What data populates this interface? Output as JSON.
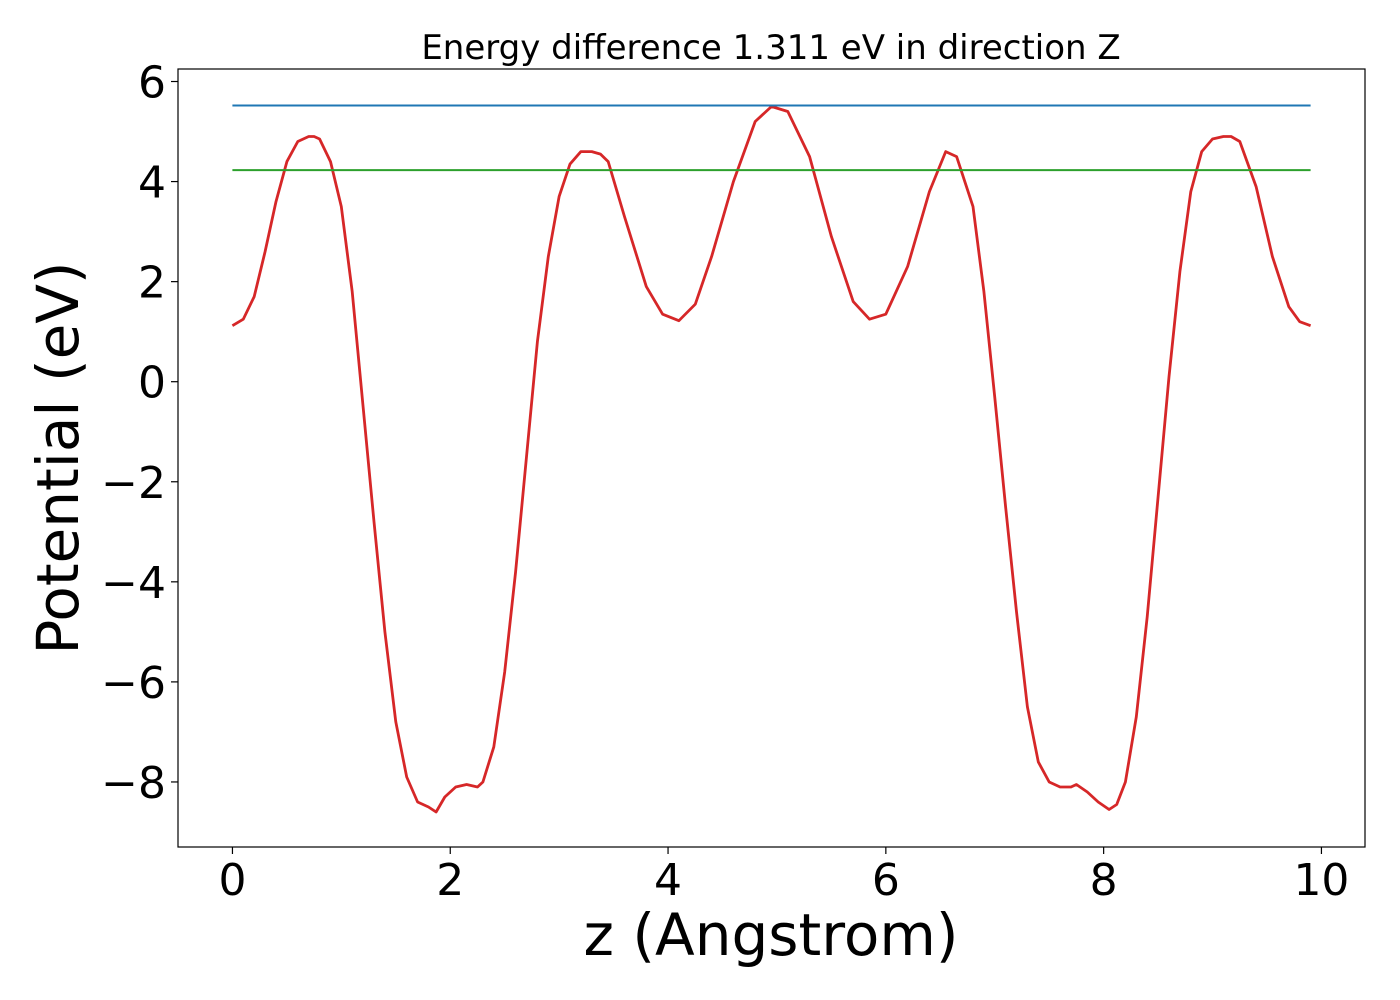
{
  "chart_data": {
    "type": "line",
    "title": "Energy difference 1.311 eV in direction Z",
    "xlabel": "z (Angstrom)",
    "ylabel": "Potential (eV)",
    "xlim": [
      -0.5,
      10.4
    ],
    "ylim": [
      -9.3,
      6.25
    ],
    "xticks": [
      0,
      2,
      4,
      6,
      8,
      10
    ],
    "yticks": [
      6,
      4,
      2,
      0,
      -2,
      -4,
      -6,
      -8
    ],
    "grid": false,
    "legend": "none",
    "series": [
      {
        "color": "#d62728",
        "x": [
          0.0,
          0.1,
          0.2,
          0.3,
          0.4,
          0.5,
          0.6,
          0.7,
          0.75,
          0.8,
          0.9,
          1.0,
          1.1,
          1.2,
          1.3,
          1.4,
          1.5,
          1.6,
          1.7,
          1.8,
          1.87,
          1.95,
          2.05,
          2.15,
          2.25,
          2.3,
          2.4,
          2.5,
          2.6,
          2.7,
          2.8,
          2.9,
          3.0,
          3.1,
          3.2,
          3.3,
          3.38,
          3.45,
          3.6,
          3.8,
          3.95,
          4.1,
          4.25,
          4.4,
          4.6,
          4.8,
          4.95,
          5.1,
          5.3,
          5.5,
          5.7,
          5.85,
          6.0,
          6.2,
          6.4,
          6.55,
          6.65,
          6.8,
          6.9,
          7.0,
          7.1,
          7.2,
          7.3,
          7.4,
          7.5,
          7.6,
          7.7,
          7.75,
          7.85,
          7.95,
          8.05,
          8.12,
          8.2,
          8.3,
          8.4,
          8.5,
          8.6,
          8.7,
          8.8,
          8.9,
          9.0,
          9.1,
          9.17,
          9.25,
          9.4,
          9.55,
          9.7,
          9.8,
          9.9
        ],
        "values": [
          1.12,
          1.25,
          1.7,
          2.6,
          3.6,
          4.4,
          4.8,
          4.9,
          4.9,
          4.85,
          4.4,
          3.5,
          1.8,
          -0.5,
          -2.8,
          -5.0,
          -6.8,
          -7.9,
          -8.4,
          -8.5,
          -8.6,
          -8.3,
          -8.1,
          -8.05,
          -8.1,
          -8.0,
          -7.3,
          -5.8,
          -3.8,
          -1.5,
          0.8,
          2.5,
          3.7,
          4.35,
          4.6,
          4.6,
          4.55,
          4.4,
          3.3,
          1.9,
          1.35,
          1.22,
          1.55,
          2.5,
          4.0,
          5.2,
          5.5,
          5.4,
          4.5,
          2.9,
          1.6,
          1.25,
          1.35,
          2.3,
          3.8,
          4.6,
          4.5,
          3.5,
          1.8,
          -0.3,
          -2.5,
          -4.6,
          -6.5,
          -7.6,
          -8.0,
          -8.1,
          -8.1,
          -8.05,
          -8.2,
          -8.4,
          -8.55,
          -8.45,
          -8.0,
          -6.7,
          -4.7,
          -2.3,
          0.1,
          2.2,
          3.8,
          4.6,
          4.85,
          4.9,
          4.9,
          4.8,
          3.9,
          2.5,
          1.5,
          1.2,
          1.12
        ]
      },
      {
        "color": "#1f77b4",
        "x": [
          0,
          9.9
        ],
        "values": [
          5.52,
          5.52
        ]
      },
      {
        "color": "#2ca02c",
        "x": [
          0,
          9.9
        ],
        "values": [
          4.23,
          4.23
        ]
      }
    ]
  }
}
